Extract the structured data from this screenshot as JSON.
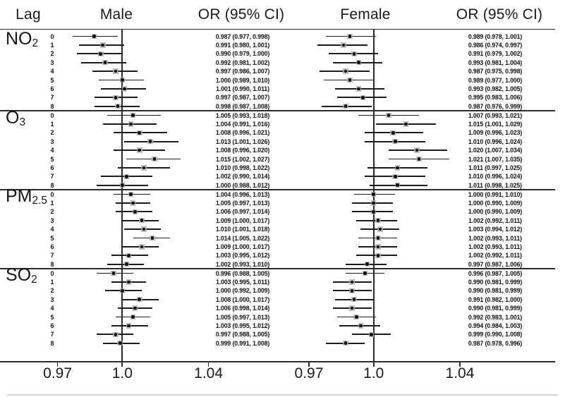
{
  "header": {
    "lag": "Lag",
    "male": "Male",
    "male_or": "OR (95% CI)",
    "female": "Female",
    "female_or": "OR (95% CI)"
  },
  "axis": {
    "tick_labels": [
      "0.97",
      "1.0",
      "1.04"
    ],
    "tick_values": [
      0.97,
      1.0,
      1.04
    ],
    "reference_line": 1.0
  },
  "colors": {
    "line": "#2b2b2b",
    "ci_line": "#1c1c1c",
    "marker_dot": "#0d0d0d",
    "marker_box": "#ababab",
    "text": "#111111"
  },
  "chart_data": {
    "type": "forest",
    "groups": [
      "Male",
      "Female"
    ],
    "value_format": "OR (95% CI)",
    "x_reference": 1.0,
    "x_ticks": [
      0.97,
      1.0,
      1.04
    ],
    "sections": [
      {
        "label": "NO",
        "subscript": "2",
        "rows": [
          {
            "lag": "0",
            "male": {
              "or": 0.987,
              "lo": 0.977,
              "hi": 0.998
            },
            "female": {
              "or": 0.989,
              "lo": 0.978,
              "hi": 1.001
            }
          },
          {
            "lag": "1",
            "male": {
              "or": 0.991,
              "lo": 0.98,
              "hi": 1.001
            },
            "female": {
              "or": 0.986,
              "lo": 0.974,
              "hi": 0.997
            }
          },
          {
            "lag": "2",
            "male": {
              "or": 0.99,
              "lo": 0.979,
              "hi": 1.0
            },
            "female": {
              "or": 0.991,
              "lo": 0.979,
              "hi": 1.002
            }
          },
          {
            "lag": "3",
            "male": {
              "or": 0.992,
              "lo": 0.981,
              "hi": 1.002
            },
            "female": {
              "or": 0.993,
              "lo": 0.981,
              "hi": 1.004
            }
          },
          {
            "lag": "4",
            "male": {
              "or": 0.997,
              "lo": 0.986,
              "hi": 1.007
            },
            "female": {
              "or": 0.987,
              "lo": 0.975,
              "hi": 0.998
            }
          },
          {
            "lag": "5",
            "male": {
              "or": 1.0,
              "lo": 0.989,
              "hi": 1.01
            },
            "female": {
              "or": 0.989,
              "lo": 0.977,
              "hi": 1.0
            }
          },
          {
            "lag": "6",
            "male": {
              "or": 1.001,
              "lo": 0.99,
              "hi": 1.011
            },
            "female": {
              "or": 0.993,
              "lo": 0.982,
              "hi": 1.005
            }
          },
          {
            "lag": "7",
            "male": {
              "or": 0.997,
              "lo": 0.987,
              "hi": 1.007
            },
            "female": {
              "or": 0.995,
              "lo": 0.983,
              "hi": 1.006
            }
          },
          {
            "lag": "8",
            "male": {
              "or": 0.998,
              "lo": 0.987,
              "hi": 1.008
            },
            "female": {
              "or": 0.987,
              "lo": 0.976,
              "hi": 0.999
            }
          }
        ]
      },
      {
        "label": "O",
        "subscript": "3",
        "rows": [
          {
            "lag": "0",
            "male": {
              "or": 1.005,
              "lo": 0.993,
              "hi": 1.018
            },
            "female": {
              "or": 1.007,
              "lo": 0.993,
              "hi": 1.021
            }
          },
          {
            "lag": "1",
            "male": {
              "or": 1.004,
              "lo": 0.991,
              "hi": 1.016
            },
            "female": {
              "or": 1.015,
              "lo": 1.001,
              "hi": 1.029
            }
          },
          {
            "lag": "2",
            "male": {
              "or": 1.008,
              "lo": 0.996,
              "hi": 1.021
            },
            "female": {
              "or": 1.009,
              "lo": 0.996,
              "hi": 1.023
            }
          },
          {
            "lag": "3",
            "male": {
              "or": 1.013,
              "lo": 1.001,
              "hi": 1.026
            },
            "female": {
              "or": 1.01,
              "lo": 0.996,
              "hi": 1.024
            }
          },
          {
            "lag": "4",
            "male": {
              "or": 1.008,
              "lo": 0.996,
              "hi": 1.02
            },
            "female": {
              "or": 1.02,
              "lo": 1.007,
              "hi": 1.034
            }
          },
          {
            "lag": "5",
            "male": {
              "or": 1.015,
              "lo": 1.002,
              "hi": 1.027
            },
            "female": {
              "or": 1.021,
              "lo": 1.007,
              "hi": 1.035
            }
          },
          {
            "lag": "6",
            "male": {
              "or": 1.01,
              "lo": 0.998,
              "hi": 1.022
            },
            "female": {
              "or": 1.011,
              "lo": 0.997,
              "hi": 1.025
            }
          },
          {
            "lag": "7",
            "male": {
              "or": 1.002,
              "lo": 0.99,
              "hi": 1.014
            },
            "female": {
              "or": 1.01,
              "lo": 0.996,
              "hi": 1.024
            }
          },
          {
            "lag": "8",
            "male": {
              "or": 1.0,
              "lo": 0.988,
              "hi": 1.012
            },
            "female": {
              "or": 1.011,
              "lo": 0.998,
              "hi": 1.025
            }
          }
        ]
      },
      {
        "label": "PM",
        "subscript": "2.5",
        "rows": [
          {
            "lag": "0",
            "male": {
              "or": 1.004,
              "lo": 0.996,
              "hi": 1.013
            },
            "female": {
              "or": 1.0,
              "lo": 0.991,
              "hi": 1.01
            }
          },
          {
            "lag": "1",
            "male": {
              "or": 1.005,
              "lo": 0.997,
              "hi": 1.013
            },
            "female": {
              "or": 1.0,
              "lo": 0.99,
              "hi": 1.009
            }
          },
          {
            "lag": "2",
            "male": {
              "or": 1.006,
              "lo": 0.997,
              "hi": 1.014
            },
            "female": {
              "or": 1.0,
              "lo": 0.99,
              "hi": 1.009
            }
          },
          {
            "lag": "3",
            "male": {
              "or": 1.009,
              "lo": 1.0,
              "hi": 1.017
            },
            "female": {
              "or": 1.002,
              "lo": 0.992,
              "hi": 1.011
            }
          },
          {
            "lag": "4",
            "male": {
              "or": 1.01,
              "lo": 1.001,
              "hi": 1.018
            },
            "female": {
              "or": 1.003,
              "lo": 0.994,
              "hi": 1.012
            }
          },
          {
            "lag": "5",
            "male": {
              "or": 1.014,
              "lo": 1.005,
              "hi": 1.022
            },
            "female": {
              "or": 1.002,
              "lo": 0.993,
              "hi": 1.011
            }
          },
          {
            "lag": "6",
            "male": {
              "or": 1.009,
              "lo": 1.0,
              "hi": 1.017
            },
            "female": {
              "or": 1.002,
              "lo": 0.993,
              "hi": 1.011
            }
          },
          {
            "lag": "7",
            "male": {
              "or": 1.003,
              "lo": 0.995,
              "hi": 1.012
            },
            "female": {
              "or": 1.002,
              "lo": 0.992,
              "hi": 1.011
            }
          },
          {
            "lag": "8",
            "male": {
              "or": 1.002,
              "lo": 0.993,
              "hi": 1.01
            },
            "female": {
              "or": 0.997,
              "lo": 0.987,
              "hi": 1.006
            }
          }
        ]
      },
      {
        "label": "SO",
        "subscript": "2",
        "rows": [
          {
            "lag": "0",
            "male": {
              "or": 0.996,
              "lo": 0.988,
              "hi": 1.005
            },
            "female": {
              "or": 0.996,
              "lo": 0.987,
              "hi": 1.005
            }
          },
          {
            "lag": "1",
            "male": {
              "or": 1.003,
              "lo": 0.995,
              "hi": 1.011
            },
            "female": {
              "or": 0.99,
              "lo": 0.981,
              "hi": 0.999
            }
          },
          {
            "lag": "2",
            "male": {
              "or": 1.0,
              "lo": 0.992,
              "hi": 1.009
            },
            "female": {
              "or": 0.99,
              "lo": 0.981,
              "hi": 0.999
            }
          },
          {
            "lag": "3",
            "male": {
              "or": 1.008,
              "lo": 1.0,
              "hi": 1.017
            },
            "female": {
              "or": 0.991,
              "lo": 0.982,
              "hi": 1.0
            }
          },
          {
            "lag": "4",
            "male": {
              "or": 1.006,
              "lo": 0.998,
              "hi": 1.014
            },
            "female": {
              "or": 0.99,
              "lo": 0.981,
              "hi": 0.999
            }
          },
          {
            "lag": "5",
            "male": {
              "or": 1.005,
              "lo": 0.997,
              "hi": 1.013
            },
            "female": {
              "or": 0.992,
              "lo": 0.983,
              "hi": 1.001
            }
          },
          {
            "lag": "6",
            "male": {
              "or": 1.003,
              "lo": 0.995,
              "hi": 1.012
            },
            "female": {
              "or": 0.994,
              "lo": 0.984,
              "hi": 1.003
            }
          },
          {
            "lag": "7",
            "male": {
              "or": 0.997,
              "lo": 0.988,
              "hi": 1.005
            },
            "female": {
              "or": 0.999,
              "lo": 0.99,
              "hi": 1.008
            }
          },
          {
            "lag": "8",
            "male": {
              "or": 0.999,
              "lo": 0.991,
              "hi": 1.008
            },
            "female": {
              "or": 0.987,
              "lo": 0.978,
              "hi": 0.996
            }
          }
        ]
      }
    ]
  }
}
